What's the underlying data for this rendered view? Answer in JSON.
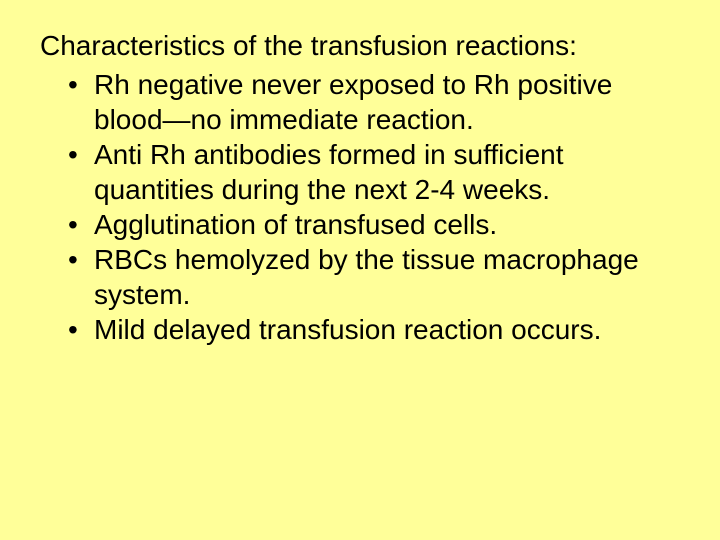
{
  "slide": {
    "background_color": "#ffff99",
    "text_color": "#000000",
    "font_family": "Arial",
    "heading_fontsize": 28,
    "bullet_fontsize": 28,
    "heading": "Characteristics of the transfusion reactions:",
    "bullets": [
      "Rh negative never exposed to Rh positive blood—no immediate reaction.",
      "Anti Rh antibodies formed in sufficient quantities during the next 2-4 weeks.",
      "Agglutination of transfused cells.",
      "RBCs hemolyzed by the tissue macrophage system.",
      "Mild delayed transfusion reaction occurs."
    ]
  }
}
